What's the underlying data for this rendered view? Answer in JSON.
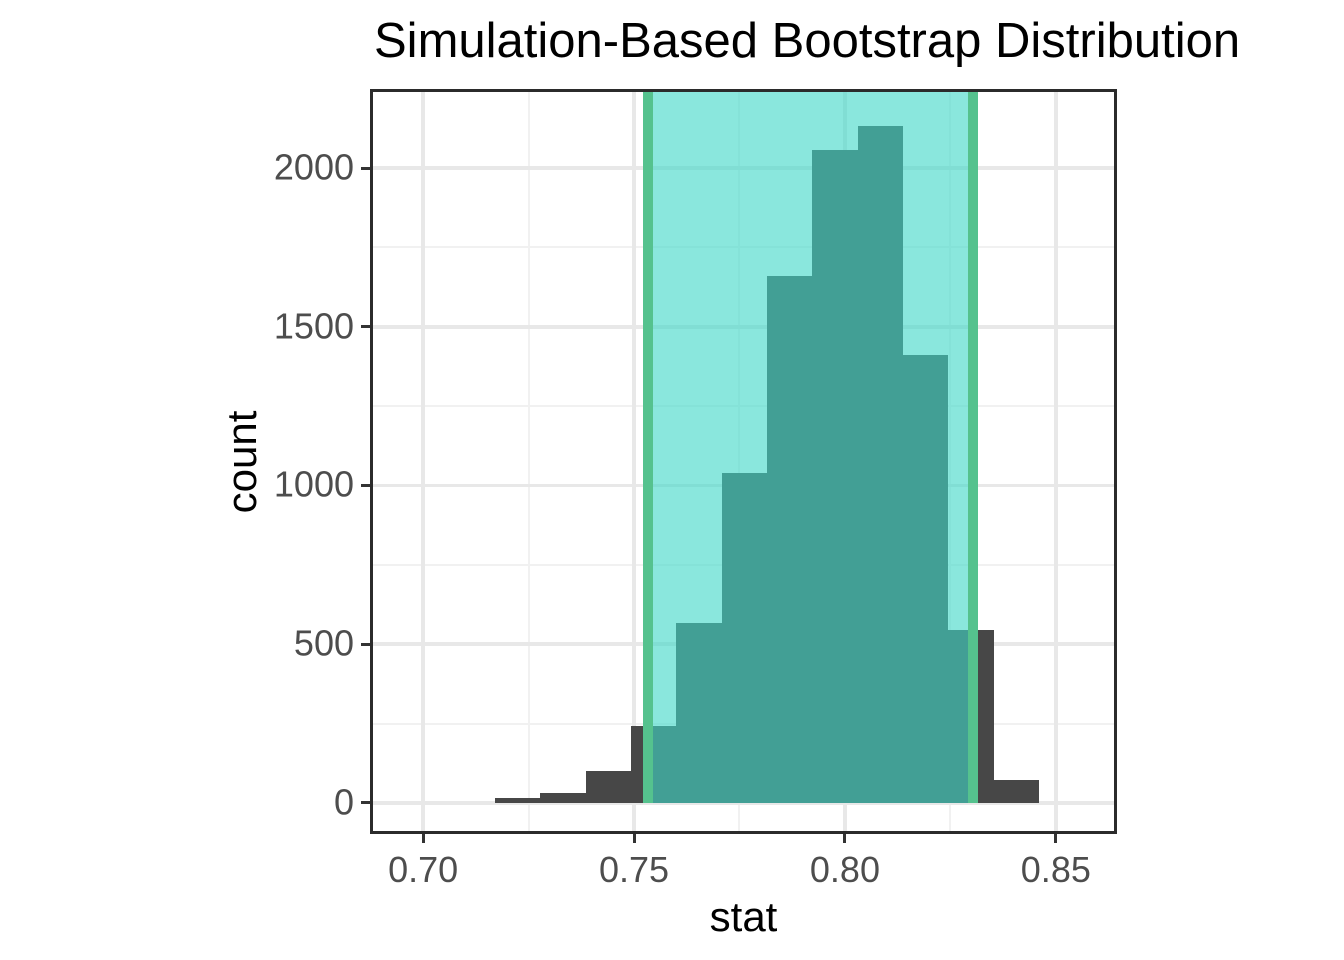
{
  "title": "Simulation-Based Bootstrap Distribution",
  "chart_data": {
    "type": "bar",
    "subtype": "histogram",
    "title": "Simulation-Based Bootstrap Distribution",
    "xlabel": "stat",
    "ylabel": "count",
    "x_domain": [
      0.6874,
      0.8645
    ],
    "y_domain": [
      -98,
      2249
    ],
    "x_ticks": [
      0.7,
      0.75,
      0.8,
      0.85
    ],
    "x_tick_labels": [
      "0.70",
      "0.75",
      "0.80",
      "0.85"
    ],
    "x_minor_ticks": [
      0.725,
      0.775,
      0.825
    ],
    "y_ticks": [
      0,
      500,
      1000,
      1500,
      2000
    ],
    "y_tick_labels": [
      "0",
      "500",
      "1000",
      "1500",
      "2000"
    ],
    "y_minor_ticks": [
      250,
      750,
      1250,
      1750
    ],
    "grid": true,
    "legend": "none",
    "bin_start": 0.717,
    "bin_width": 0.01075,
    "bin_centers": [
      0.7224,
      0.7331,
      0.7439,
      0.7546,
      0.7654,
      0.7761,
      0.7869,
      0.7976,
      0.8084,
      0.8191,
      0.8299,
      0.8406
    ],
    "counts": [
      14,
      32,
      100,
      243,
      566,
      1040,
      1660,
      2056,
      2133,
      1411,
      545,
      72
    ],
    "total_replicates": 9872,
    "confidence_interval": {
      "lower": 0.7532,
      "upper": 0.8304
    },
    "colors": {
      "bar": "#474747",
      "shade_fill": "rgba(64,216,200,0.61)",
      "shade_border": "#55c28e",
      "grid_major": "#e8e8e8",
      "grid_minor": "#f1f1f1",
      "panel_border": "#2b2b2b",
      "tick_mark": "#333333",
      "tick_label": "#4d4d4d",
      "axis_title": "#000000",
      "title": "#000000",
      "background": "#ffffff"
    }
  }
}
